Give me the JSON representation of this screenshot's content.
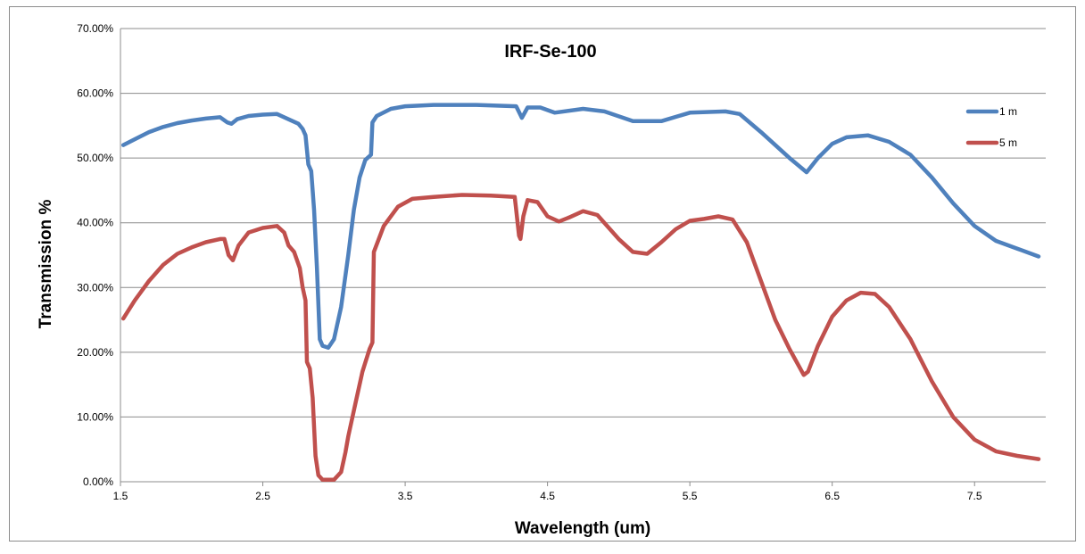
{
  "chart_data": {
    "type": "line",
    "title": "IRF-Se-100",
    "xlabel": "Wavelength (um)",
    "ylabel": "Transmission %",
    "xlim": [
      1.5,
      8.0
    ],
    "ylim": [
      0,
      0.7
    ],
    "x_ticks": [
      1.5,
      2.5,
      3.5,
      4.5,
      5.5,
      6.5,
      7.5
    ],
    "x_tick_labels": [
      "1.5",
      "2.5",
      "3.5",
      "4.5",
      "5.5",
      "6.5",
      "7.5"
    ],
    "y_ticks": [
      0,
      0.1,
      0.2,
      0.3,
      0.4,
      0.5,
      0.6,
      0.7
    ],
    "y_tick_labels": [
      "0.00%",
      "10.00%",
      "20.00%",
      "30.00%",
      "40.00%",
      "50.00%",
      "60.00%",
      "70.00%"
    ],
    "grid": "horizontal",
    "legend_position": "right",
    "series": [
      {
        "name": "1 m",
        "color": "#4f81bd",
        "points": [
          [
            1.52,
            0.52
          ],
          [
            1.6,
            0.529
          ],
          [
            1.7,
            0.54
          ],
          [
            1.8,
            0.548
          ],
          [
            1.9,
            0.554
          ],
          [
            2.0,
            0.558
          ],
          [
            2.1,
            0.561
          ],
          [
            2.2,
            0.563
          ],
          [
            2.25,
            0.555
          ],
          [
            2.28,
            0.553
          ],
          [
            2.32,
            0.56
          ],
          [
            2.4,
            0.565
          ],
          [
            2.5,
            0.567
          ],
          [
            2.6,
            0.568
          ],
          [
            2.7,
            0.558
          ],
          [
            2.75,
            0.553
          ],
          [
            2.78,
            0.545
          ],
          [
            2.8,
            0.535
          ],
          [
            2.82,
            0.49
          ],
          [
            2.84,
            0.48
          ],
          [
            2.86,
            0.42
          ],
          [
            2.88,
            0.33
          ],
          [
            2.9,
            0.22
          ],
          [
            2.92,
            0.21
          ],
          [
            2.96,
            0.207
          ],
          [
            3.0,
            0.22
          ],
          [
            3.05,
            0.27
          ],
          [
            3.1,
            0.35
          ],
          [
            3.14,
            0.42
          ],
          [
            3.18,
            0.47
          ],
          [
            3.22,
            0.497
          ],
          [
            3.26,
            0.505
          ],
          [
            3.27,
            0.555
          ],
          [
            3.3,
            0.565
          ],
          [
            3.4,
            0.576
          ],
          [
            3.5,
            0.58
          ],
          [
            3.7,
            0.582
          ],
          [
            4.0,
            0.582
          ],
          [
            4.28,
            0.58
          ],
          [
            4.32,
            0.562
          ],
          [
            4.36,
            0.578
          ],
          [
            4.45,
            0.578
          ],
          [
            4.55,
            0.57
          ],
          [
            4.75,
            0.576
          ],
          [
            4.9,
            0.572
          ],
          [
            5.1,
            0.557
          ],
          [
            5.3,
            0.557
          ],
          [
            5.5,
            0.57
          ],
          [
            5.75,
            0.572
          ],
          [
            5.85,
            0.568
          ],
          [
            6.0,
            0.54
          ],
          [
            6.2,
            0.5
          ],
          [
            6.32,
            0.478
          ],
          [
            6.4,
            0.5
          ],
          [
            6.5,
            0.522
          ],
          [
            6.6,
            0.532
          ],
          [
            6.75,
            0.535
          ],
          [
            6.9,
            0.525
          ],
          [
            7.05,
            0.505
          ],
          [
            7.2,
            0.47
          ],
          [
            7.35,
            0.43
          ],
          [
            7.5,
            0.395
          ],
          [
            7.65,
            0.372
          ],
          [
            7.8,
            0.36
          ],
          [
            7.95,
            0.348
          ]
        ]
      },
      {
        "name": "5 m",
        "color": "#c0504d",
        "points": [
          [
            1.52,
            0.252
          ],
          [
            1.6,
            0.28
          ],
          [
            1.7,
            0.31
          ],
          [
            1.8,
            0.335
          ],
          [
            1.9,
            0.352
          ],
          [
            2.0,
            0.362
          ],
          [
            2.1,
            0.37
          ],
          [
            2.2,
            0.375
          ],
          [
            2.23,
            0.375
          ],
          [
            2.26,
            0.35
          ],
          [
            2.29,
            0.342
          ],
          [
            2.33,
            0.365
          ],
          [
            2.4,
            0.385
          ],
          [
            2.5,
            0.392
          ],
          [
            2.6,
            0.395
          ],
          [
            2.65,
            0.385
          ],
          [
            2.68,
            0.365
          ],
          [
            2.72,
            0.355
          ],
          [
            2.76,
            0.33
          ],
          [
            2.78,
            0.3
          ],
          [
            2.8,
            0.28
          ],
          [
            2.81,
            0.185
          ],
          [
            2.83,
            0.175
          ],
          [
            2.85,
            0.13
          ],
          [
            2.87,
            0.04
          ],
          [
            2.89,
            0.01
          ],
          [
            2.92,
            0.003
          ],
          [
            3.0,
            0.003
          ],
          [
            3.05,
            0.015
          ],
          [
            3.08,
            0.045
          ],
          [
            3.1,
            0.07
          ],
          [
            3.15,
            0.12
          ],
          [
            3.2,
            0.17
          ],
          [
            3.25,
            0.205
          ],
          [
            3.27,
            0.215
          ],
          [
            3.28,
            0.355
          ],
          [
            3.35,
            0.395
          ],
          [
            3.45,
            0.425
          ],
          [
            3.55,
            0.437
          ],
          [
            3.7,
            0.44
          ],
          [
            3.9,
            0.443
          ],
          [
            4.1,
            0.442
          ],
          [
            4.27,
            0.44
          ],
          [
            4.3,
            0.38
          ],
          [
            4.31,
            0.375
          ],
          [
            4.33,
            0.41
          ],
          [
            4.36,
            0.435
          ],
          [
            4.43,
            0.432
          ],
          [
            4.5,
            0.41
          ],
          [
            4.58,
            0.402
          ],
          [
            4.65,
            0.408
          ],
          [
            4.75,
            0.418
          ],
          [
            4.85,
            0.412
          ],
          [
            5.0,
            0.375
          ],
          [
            5.1,
            0.355
          ],
          [
            5.2,
            0.352
          ],
          [
            5.3,
            0.37
          ],
          [
            5.4,
            0.39
          ],
          [
            5.5,
            0.403
          ],
          [
            5.6,
            0.406
          ],
          [
            5.7,
            0.41
          ],
          [
            5.8,
            0.405
          ],
          [
            5.9,
            0.37
          ],
          [
            6.0,
            0.31
          ],
          [
            6.1,
            0.25
          ],
          [
            6.2,
            0.205
          ],
          [
            6.3,
            0.165
          ],
          [
            6.33,
            0.17
          ],
          [
            6.4,
            0.21
          ],
          [
            6.5,
            0.255
          ],
          [
            6.6,
            0.28
          ],
          [
            6.7,
            0.292
          ],
          [
            6.8,
            0.29
          ],
          [
            6.9,
            0.27
          ],
          [
            7.05,
            0.22
          ],
          [
            7.2,
            0.155
          ],
          [
            7.35,
            0.1
          ],
          [
            7.5,
            0.065
          ],
          [
            7.65,
            0.047
          ],
          [
            7.8,
            0.04
          ],
          [
            7.95,
            0.035
          ]
        ]
      }
    ]
  }
}
